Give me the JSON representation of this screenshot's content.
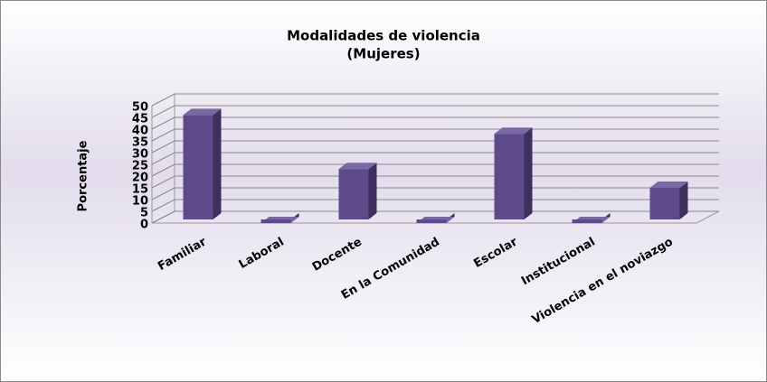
{
  "chart_data": {
    "type": "bar3d",
    "title": [
      "Modalidades de violencia",
      "(Mujeres)"
    ],
    "y_axis_label": "Porcentaje",
    "categories": [
      "Familiar",
      "Laboral",
      "Docente",
      "En la Comunidad",
      "Escolar",
      "Institucional",
      "Violencia en el noviazgo"
    ],
    "values": [
      46,
      0,
      23,
      0,
      38,
      0,
      15
    ],
    "color": "#5e4a8a",
    "ylim": [
      0,
      50
    ],
    "yticks": [
      0,
      5,
      10,
      15,
      20,
      25,
      30,
      35,
      40,
      45,
      50
    ],
    "grid": true
  }
}
